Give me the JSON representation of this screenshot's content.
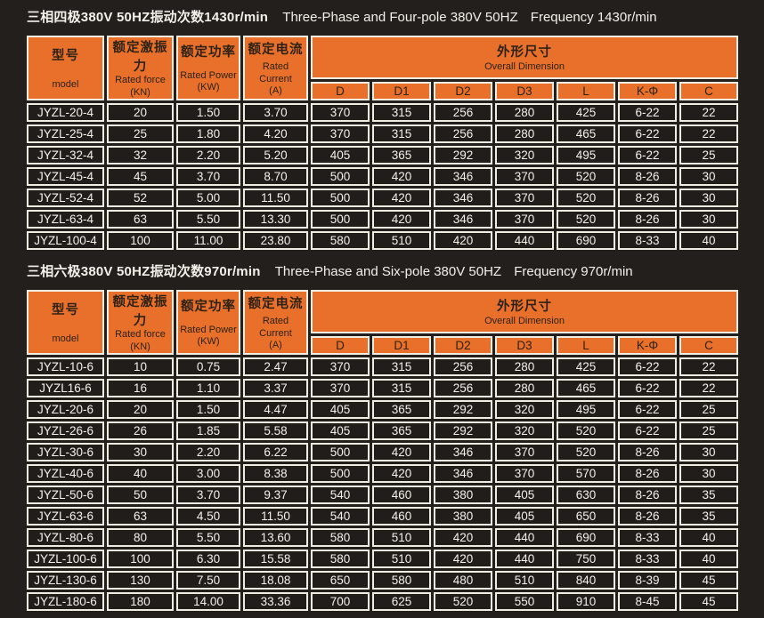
{
  "colors": {
    "accent_orange": "#e8702b",
    "page_background": "#231f1d",
    "cell_background": "#211d1b",
    "border_white": "#efece4",
    "header_text": "#2e2214",
    "body_text": "#f4f1eb"
  },
  "titles": [
    {
      "zh": "三相四极380V 50HZ振动次数1430r/min",
      "en": "Three-Phase and Four-pole 380V 50HZ",
      "freq": "Frequency 1430r/min"
    },
    {
      "zh": "三相六极380V 50HZ振动次数970r/min",
      "en": "Three-Phase and Six-pole 380V 50HZ",
      "freq": "Frequency 970r/min"
    }
  ],
  "header": {
    "model_zh": "型号",
    "model_en": "model",
    "force_zh": "额定激振力",
    "force_en_1": "Rated force",
    "force_en_2": "(KN)",
    "power_zh": "额定功率",
    "power_en_1": "Rated Power",
    "power_en_2": "(KW)",
    "current_zh": "额定电流",
    "current_en_1": "Rated Current",
    "current_en_2": "(A)",
    "dim_zh": "外形尺寸",
    "dim_en": "Overall Dimension",
    "dims": [
      "D",
      "D1",
      "D2",
      "D3",
      "L",
      "K-Φ",
      "C"
    ]
  },
  "tables": [
    {
      "name": "four-pole",
      "rows": [
        [
          "JYZL-20-4",
          "20",
          "1.50",
          "3.70",
          "370",
          "315",
          "256",
          "280",
          "425",
          "6-22",
          "22"
        ],
        [
          "JYZL-25-4",
          "25",
          "1.80",
          "4.20",
          "370",
          "315",
          "256",
          "280",
          "465",
          "6-22",
          "22"
        ],
        [
          "JYZL-32-4",
          "32",
          "2.20",
          "5.20",
          "405",
          "365",
          "292",
          "320",
          "495",
          "6-22",
          "25"
        ],
        [
          "JYZL-45-4",
          "45",
          "3.70",
          "8.70",
          "500",
          "420",
          "346",
          "370",
          "520",
          "8-26",
          "30"
        ],
        [
          "JYZL-52-4",
          "52",
          "5.00",
          "11.50",
          "500",
          "420",
          "346",
          "370",
          "520",
          "8-26",
          "30"
        ],
        [
          "JYZL-63-4",
          "63",
          "5.50",
          "13.30",
          "500",
          "420",
          "346",
          "370",
          "520",
          "8-26",
          "30"
        ],
        [
          "JYZL-100-4",
          "100",
          "11.00",
          "23.80",
          "580",
          "510",
          "420",
          "440",
          "690",
          "8-33",
          "40"
        ]
      ]
    },
    {
      "name": "six-pole",
      "rows": [
        [
          "JYZL-10-6",
          "10",
          "0.75",
          "2.47",
          "370",
          "315",
          "256",
          "280",
          "425",
          "6-22",
          "22"
        ],
        [
          "JYZL16-6",
          "16",
          "1.10",
          "3.37",
          "370",
          "315",
          "256",
          "280",
          "465",
          "6-22",
          "22"
        ],
        [
          "JYZL-20-6",
          "20",
          "1.50",
          "4.47",
          "405",
          "365",
          "292",
          "320",
          "495",
          "6-22",
          "25"
        ],
        [
          "JYZL-26-6",
          "26",
          "1.85",
          "5.58",
          "405",
          "365",
          "292",
          "320",
          "520",
          "6-22",
          "25"
        ],
        [
          "JYZL-30-6",
          "30",
          "2.20",
          "6.22",
          "500",
          "420",
          "346",
          "370",
          "520",
          "8-26",
          "30"
        ],
        [
          "JYZL-40-6",
          "40",
          "3.00",
          "8.38",
          "500",
          "420",
          "346",
          "370",
          "570",
          "8-26",
          "30"
        ],
        [
          "JYZL-50-6",
          "50",
          "3.70",
          "9.37",
          "540",
          "460",
          "380",
          "405",
          "630",
          "8-26",
          "35"
        ],
        [
          "JYZL-63-6",
          "63",
          "4.50",
          "11.50",
          "540",
          "460",
          "380",
          "405",
          "650",
          "8-26",
          "35"
        ],
        [
          "JYZL-80-6",
          "80",
          "5.50",
          "13.60",
          "580",
          "510",
          "420",
          "440",
          "690",
          "8-33",
          "40"
        ],
        [
          "JYZL-100-6",
          "100",
          "6.30",
          "15.58",
          "580",
          "510",
          "420",
          "440",
          "750",
          "8-33",
          "40"
        ],
        [
          "JYZL-130-6",
          "130",
          "7.50",
          "18.08",
          "650",
          "580",
          "480",
          "510",
          "840",
          "8-39",
          "45"
        ],
        [
          "JYZL-180-6",
          "180",
          "14.00",
          "33.36",
          "700",
          "625",
          "520",
          "550",
          "910",
          "8-45",
          "45"
        ]
      ]
    }
  ]
}
